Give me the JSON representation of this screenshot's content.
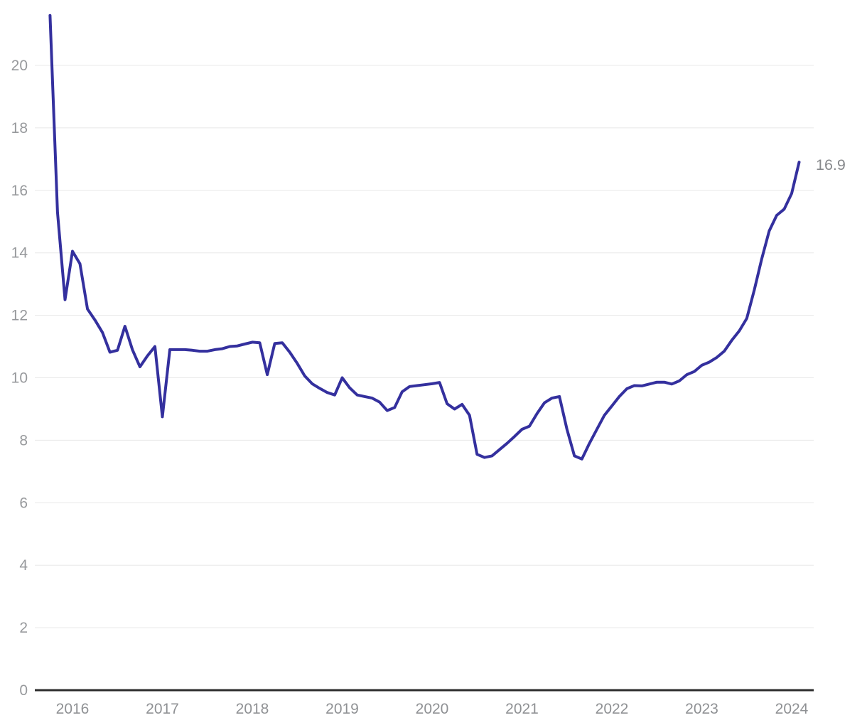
{
  "chart_data": {
    "type": "line",
    "title": "",
    "end_label": "16.9",
    "series": [
      {
        "name": "main-series",
        "start": "2015-10",
        "interval": "month",
        "values": [
          21.6,
          15.3,
          12.5,
          14.05,
          13.65,
          12.2,
          11.85,
          11.45,
          10.82,
          10.88,
          11.65,
          10.9,
          10.35,
          10.7,
          11.0,
          8.75,
          10.9,
          10.9,
          10.9,
          10.88,
          10.85,
          10.85,
          10.9,
          10.93,
          11.0,
          11.02,
          11.08,
          11.14,
          11.12,
          10.1,
          11.1,
          11.12,
          10.82,
          10.46,
          10.06,
          9.81,
          9.66,
          9.53,
          9.45,
          10.0,
          9.68,
          9.45,
          9.4,
          9.35,
          9.22,
          8.95,
          9.05,
          9.55,
          9.72,
          9.75,
          9.78,
          9.81,
          9.85,
          9.17,
          9.0,
          9.15,
          8.8,
          7.55,
          7.45,
          7.5,
          7.7,
          7.9,
          8.12,
          8.35,
          8.45,
          8.85,
          9.2,
          9.35,
          9.4,
          8.35,
          7.5,
          7.4,
          7.9,
          8.35,
          8.8,
          9.1,
          9.4,
          9.65,
          9.75,
          9.74,
          9.8,
          9.86,
          9.86,
          9.8,
          9.9,
          10.1,
          10.2,
          10.4,
          10.5,
          10.65,
          10.85,
          11.2,
          11.5,
          11.9,
          12.8,
          13.8,
          14.7,
          15.2,
          15.4,
          15.9,
          16.9
        ]
      }
    ],
    "x_axis": {
      "tick_labels": [
        "2016",
        "2017",
        "2018",
        "2019",
        "2020",
        "2021",
        "2022",
        "2023",
        "2024"
      ]
    },
    "y_axis": {
      "tick_labels": [
        "0",
        "2",
        "4",
        "6",
        "8",
        "10",
        "12",
        "14",
        "16",
        "18",
        "20"
      ],
      "ticks": [
        0,
        2,
        4,
        6,
        8,
        10,
        12,
        14,
        16,
        18,
        20
      ],
      "range": [
        0,
        21.8
      ]
    },
    "legend": "none",
    "grid": "horizontal-only",
    "colors": {
      "line": "#34309e",
      "grid": "#e8e8e8",
      "axis": "#2d2d2d",
      "y_tick_text": "#97999c",
      "x_tick_text": "#8f9194",
      "end_label_text": "#87898c",
      "background": "#ffffff"
    }
  }
}
